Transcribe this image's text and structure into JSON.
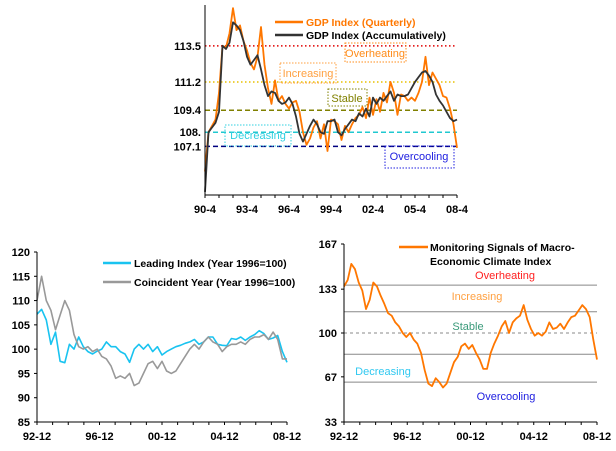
{
  "chart_data": [
    {
      "type": "line",
      "x_tick_labels": [
        "90-4",
        "93-4",
        "96-4",
        "99-4",
        "02-4",
        "05-4",
        "08-4"
      ],
      "x_range": [
        "90-4",
        "08-4"
      ],
      "frequency": "quarterly",
      "ylim": [
        104,
        116.1
      ],
      "y_tick_labels": [
        {
          "label": "113.5",
          "value": 113.5,
          "color": "#e00000"
        },
        {
          "label": "111.2",
          "value": 111.2,
          "color": "#b08a00"
        },
        {
          "label": "109.4",
          "value": 109.4,
          "color": "#808000"
        },
        {
          "label": "108.",
          "value": 108.0,
          "color": "#00c8d0"
        },
        {
          "label": "107.1",
          "value": 107.1,
          "color": "#0000c0"
        }
      ],
      "reference_lines": [
        {
          "value": 113.5,
          "color": "#e00000",
          "style": "dotted"
        },
        {
          "value": 111.2,
          "color": "#e8c000",
          "style": "dotted"
        },
        {
          "value": 109.4,
          "color": "#808000",
          "style": "dashed"
        },
        {
          "value": 108.0,
          "color": "#20c8d0",
          "style": "dashed"
        },
        {
          "value": 107.1,
          "color": "#000080",
          "style": "dashed"
        }
      ],
      "zones": [
        {
          "label": "Overheating",
          "color": "#ff8c1a"
        },
        {
          "label": "Increasing",
          "color": "#ffa040"
        },
        {
          "label": "Stable",
          "color": "#808000"
        },
        {
          "label": "Decreasing",
          "color": "#30d0e0"
        },
        {
          "label": "Overcooling",
          "color": "#2020e0"
        }
      ],
      "legend_position": "top-right",
      "series": [
        {
          "name": "GDP Index (Quarterly)",
          "color": "#ff7700",
          "values": [
            105.5,
            108.0,
            108.4,
            108.8,
            110.5,
            113.5,
            113.4,
            114.3,
            115.9,
            114.5,
            114.8,
            113.8,
            113.2,
            112.4,
            112.0,
            112.8,
            114.7,
            112.3,
            110.8,
            109.8,
            111.3,
            110.0,
            110.3,
            109.8,
            109.5,
            109.9,
            110.0,
            109.3,
            108.0,
            107.2,
            107.6,
            108.3,
            108.7,
            107.6,
            108.5,
            106.8,
            108.8,
            108.7,
            108.5,
            107.5,
            108.4,
            108.0,
            108.5,
            108.9,
            109.1,
            109.6,
            108.9,
            110.2,
            109.1,
            110.1,
            109.3,
            110.5,
            109.9,
            111.2,
            110.5,
            109.1,
            110.4,
            110.3,
            110.0,
            110.2,
            110.0,
            110.5,
            111.2,
            112.8,
            111.0,
            111.8,
            111.4,
            111.0,
            110.3,
            110.2,
            109.5,
            108.5,
            107.0
          ]
        },
        {
          "name": "GDP Index (Accumulatively)",
          "color": "#333333",
          "values": [
            104.2,
            108.0,
            108.3,
            108.6,
            109.3,
            113.5,
            113.3,
            113.7,
            115.0,
            114.8,
            114.5,
            113.8,
            112.8,
            112.3,
            112.6,
            112.9,
            112.0,
            111.0,
            110.3,
            110.6,
            110.5,
            110.0,
            109.8,
            109.9,
            110.2,
            109.8,
            109.0,
            107.9,
            107.4,
            107.9,
            108.4,
            108.8,
            108.5,
            108.0,
            107.9,
            108.7,
            108.7,
            108.8,
            108.0,
            107.8,
            108.2,
            108.5,
            108.8,
            108.7,
            109.2,
            109.0,
            109.5,
            109.0,
            110.2,
            109.8,
            110.2,
            110.0,
            110.3,
            110.6,
            110.0,
            110.4,
            110.3,
            110.3,
            110.4,
            110.8,
            111.2,
            111.5,
            111.8,
            111.9,
            111.6,
            111.2,
            110.4,
            110.0,
            109.7,
            109.3,
            108.9,
            108.7,
            108.8
          ]
        }
      ]
    },
    {
      "type": "line",
      "x_tick_labels": [
        "92-12",
        "96-12",
        "00-12",
        "04-12",
        "08-12"
      ],
      "x_range": [
        "92-12",
        "08-12"
      ],
      "ylim": [
        85,
        120
      ],
      "y_ticks": [
        85,
        90,
        95,
        100,
        105,
        110,
        115,
        120
      ],
      "legend_position": "top-right",
      "series": [
        {
          "name": "Leading Index (Year 1996=100)",
          "color": "#19c3f0",
          "values": [
            107.2,
            108.2,
            106.0,
            101.0,
            103.5,
            97.5,
            97.2,
            101.0,
            100.0,
            102.5,
            100.5,
            99.5,
            99.0,
            99.6,
            100.0,
            101.5,
            100.5,
            100.5,
            99.5,
            99.0,
            97.3,
            100.0,
            101.0,
            100.0,
            101.0,
            99.5,
            100.5,
            98.8,
            99.5,
            100.0,
            100.5,
            100.8,
            101.2,
            101.5,
            102.0,
            101.0,
            101.5,
            102.5,
            102.5,
            101.0,
            100.8,
            100.7,
            102.2,
            102.0,
            102.5,
            101.8,
            102.5,
            103.0,
            103.8,
            103.2,
            102.0,
            102.3,
            102.8,
            99.5,
            97.3
          ]
        },
        {
          "name": "Coincident Year (Year 1996=100)",
          "color": "#999999",
          "values": [
            110.0,
            115.0,
            110.0,
            108.0,
            104.0,
            107.0,
            110.0,
            108.0,
            103.0,
            100.5,
            100.0,
            100.5,
            99.5,
            100.0,
            98.5,
            98.0,
            96.5,
            94.0,
            94.5,
            94.0,
            95.0,
            92.5,
            93.0,
            95.0,
            97.0,
            97.5,
            96.0,
            97.5,
            95.5,
            95.0,
            95.5,
            97.0,
            98.5,
            100.0,
            101.0,
            100.0,
            101.5,
            102.5,
            101.5,
            101.0,
            99.5,
            100.5,
            101.0,
            101.0,
            101.5,
            101.0,
            102.0,
            102.5,
            102.5,
            103.0,
            102.0,
            103.5,
            102.0,
            98.0,
            98.0
          ]
        }
      ]
    },
    {
      "type": "line",
      "x_tick_labels": [
        "92-12",
        "96-12",
        "00-12",
        "04-12",
        "08-12"
      ],
      "x_range": [
        "92-12",
        "08-12"
      ],
      "ylim": [
        33,
        167
      ],
      "y_ticks": [
        33,
        67,
        100,
        133,
        167
      ],
      "reference_lines": [
        {
          "value": 136,
          "style": "solid"
        },
        {
          "value": 116,
          "style": "solid"
        },
        {
          "value": 100,
          "style": "dashed"
        },
        {
          "value": 84,
          "style": "solid"
        },
        {
          "value": 63,
          "style": "solid"
        }
      ],
      "zones": [
        {
          "label": "Overheating",
          "color": "#ff2020"
        },
        {
          "label": "Increasing",
          "color": "#ffa040"
        },
        {
          "label": "Stable",
          "color": "#3a9a7a"
        },
        {
          "label": "Decreasing",
          "color": "#30c8f0"
        },
        {
          "label": "Overcooling",
          "color": "#2020e0"
        }
      ],
      "legend_position": "top-right",
      "series": [
        {
          "name": "Monitoring Signals of Macro-Economic Climate Index",
          "name_lines": [
            "Monitoring Signals of Macro-",
            "Economic Climate Index"
          ],
          "color": "#ff7700",
          "values": [
            135,
            140,
            152,
            148,
            138,
            132,
            118,
            125,
            138,
            135,
            128,
            122,
            115,
            113,
            108,
            105,
            100,
            97,
            100,
            95,
            92,
            85,
            72,
            62,
            60,
            66,
            63,
            59,
            62,
            70,
            78,
            82,
            90,
            92,
            88,
            91,
            85,
            80,
            73,
            73,
            85,
            92,
            98,
            105,
            109,
            100,
            108,
            111,
            113,
            121,
            110,
            103,
            98,
            100,
            98,
            101,
            108,
            103,
            104,
            107,
            103,
            108,
            112,
            113,
            117,
            121,
            118,
            112,
            95,
            80
          ]
        }
      ]
    }
  ]
}
